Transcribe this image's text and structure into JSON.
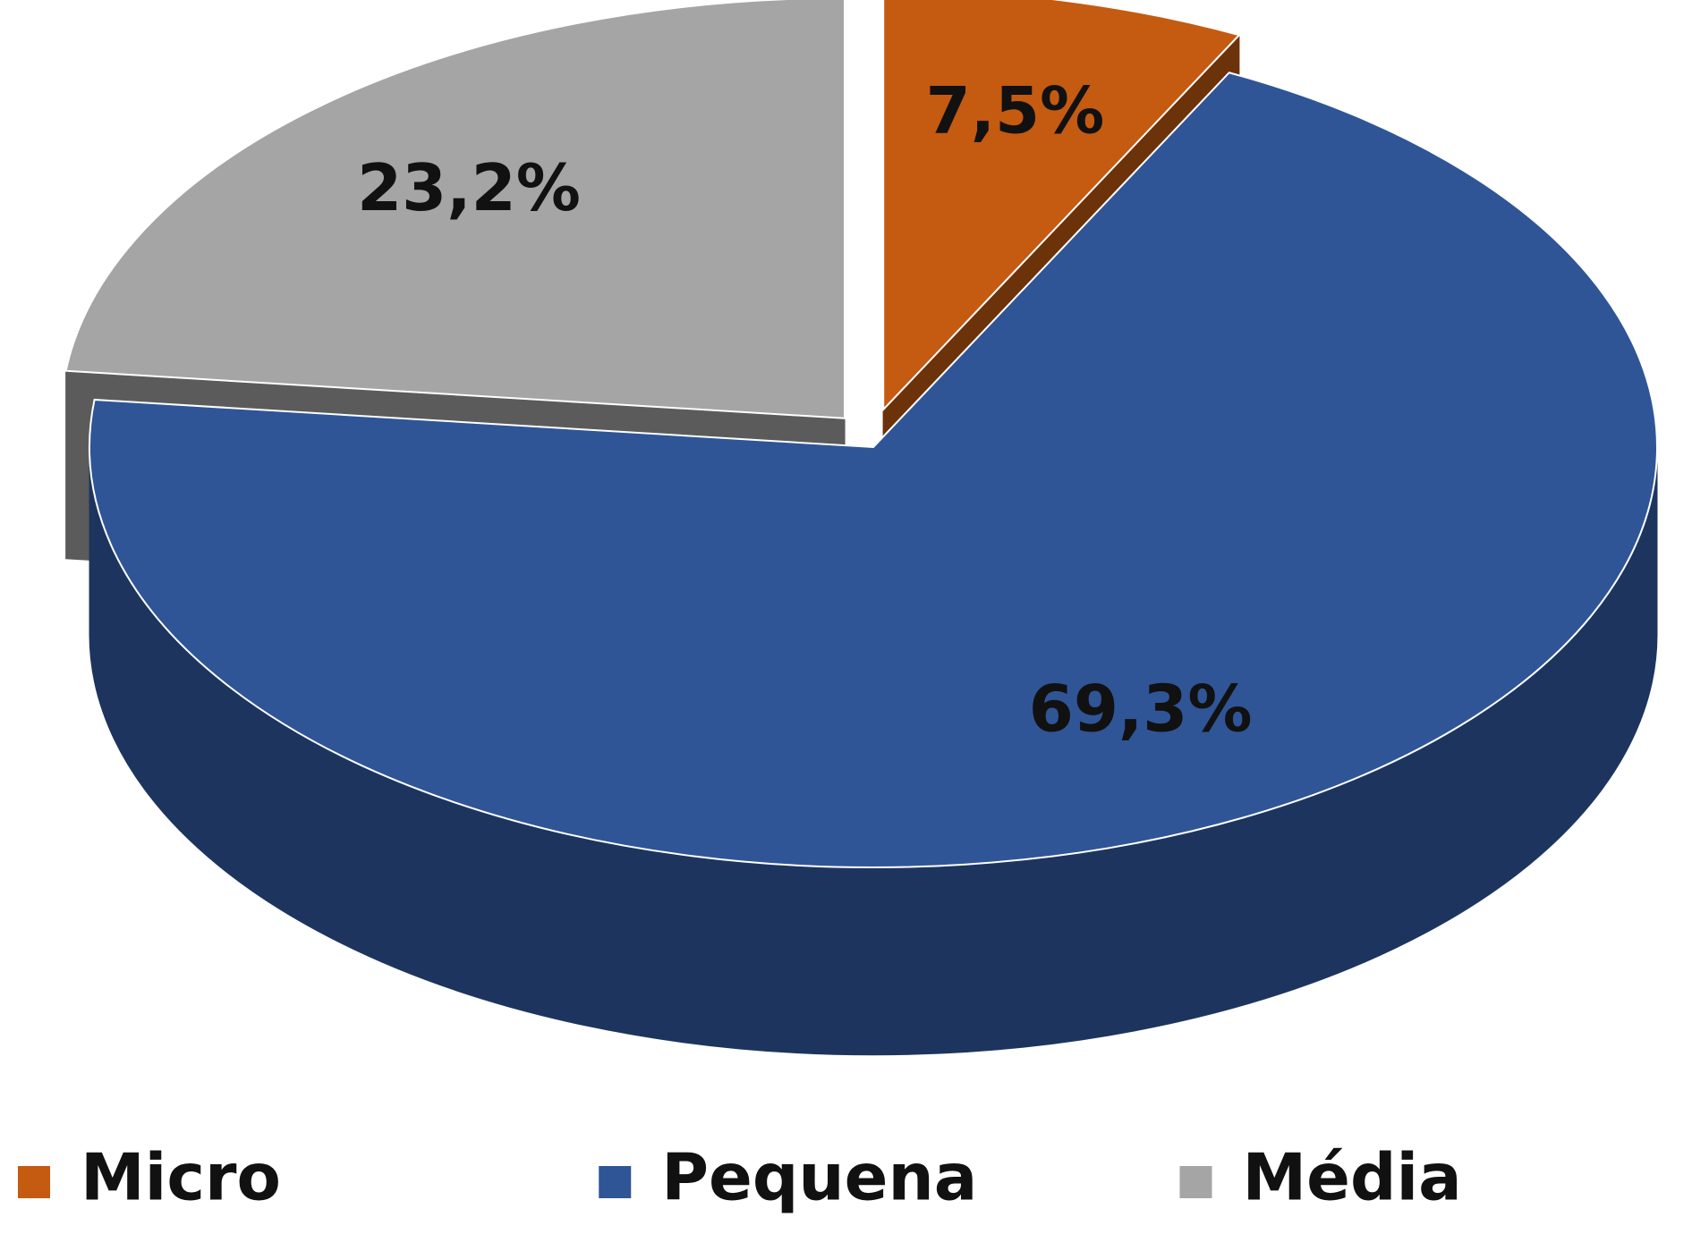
{
  "chart_data": {
    "type": "pie",
    "categories": [
      "Micro",
      "Pequena",
      "Média"
    ],
    "values": [
      7.5,
      69.3,
      23.2
    ],
    "value_labels": [
      "7,5%",
      "69,3%",
      "23,2%"
    ],
    "colors": [
      "#c55a11",
      "#2f5597",
      "#a5a5a5"
    ],
    "legend": "bottom"
  }
}
